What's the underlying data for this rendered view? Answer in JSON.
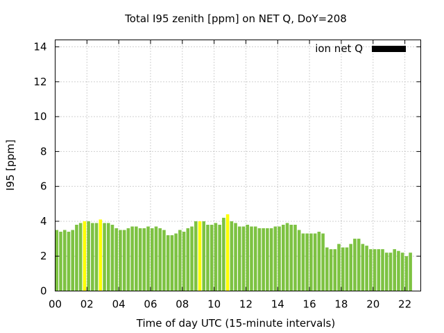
{
  "chart_data": {
    "type": "bar",
    "title": "Total I95 zenith [ppm] on NET Q, DoY=208",
    "xlabel": "Time of day UTC (15-minute intervals)",
    "ylabel": "I95 [ppm]",
    "xlim": [
      0,
      23
    ],
    "ylim": [
      0,
      14.4
    ],
    "x_ticks": [
      0,
      2,
      4,
      6,
      8,
      10,
      12,
      14,
      16,
      18,
      20,
      22
    ],
    "x_tick_labels": [
      "00",
      "02",
      "04",
      "06",
      "08",
      "10",
      "12",
      "14",
      "16",
      "18",
      "20",
      "22"
    ],
    "y_ticks": [
      0,
      2,
      4,
      6,
      8,
      10,
      12,
      14
    ],
    "y_tick_labels": [
      "0",
      "2",
      "4",
      "6",
      "8",
      "10",
      "12",
      "14"
    ],
    "grid": true,
    "legend_position": "top-right",
    "interval_hours": 0.25,
    "series": [
      {
        "name": "ion net Q",
        "color": "#7dc242",
        "highlight_color": "#ffff00",
        "highlight_indices": [
          7,
          11,
          36,
          43
        ],
        "values": [
          3.5,
          3.4,
          3.5,
          3.4,
          3.5,
          3.8,
          3.9,
          4.0,
          4.0,
          3.9,
          3.9,
          4.1,
          3.9,
          3.9,
          3.8,
          3.6,
          3.5,
          3.5,
          3.6,
          3.7,
          3.7,
          3.6,
          3.6,
          3.7,
          3.6,
          3.7,
          3.6,
          3.5,
          3.2,
          3.2,
          3.3,
          3.5,
          3.4,
          3.6,
          3.7,
          4.0,
          4.0,
          4.0,
          3.8,
          3.8,
          3.9,
          3.8,
          4.2,
          4.4,
          4.0,
          3.9,
          3.7,
          3.7,
          3.8,
          3.7,
          3.7,
          3.6,
          3.6,
          3.6,
          3.6,
          3.7,
          3.7,
          3.8,
          3.9,
          3.8,
          3.8,
          3.5,
          3.3,
          3.3,
          3.3,
          3.3,
          3.4,
          3.3,
          2.5,
          2.4,
          2.4,
          2.7,
          2.5,
          2.5,
          2.7,
          3.0,
          3.0,
          2.7,
          2.6,
          2.4,
          2.4,
          2.4,
          2.4,
          2.2,
          2.2,
          2.4,
          2.3,
          2.2,
          2.0,
          2.2
        ]
      }
    ]
  }
}
